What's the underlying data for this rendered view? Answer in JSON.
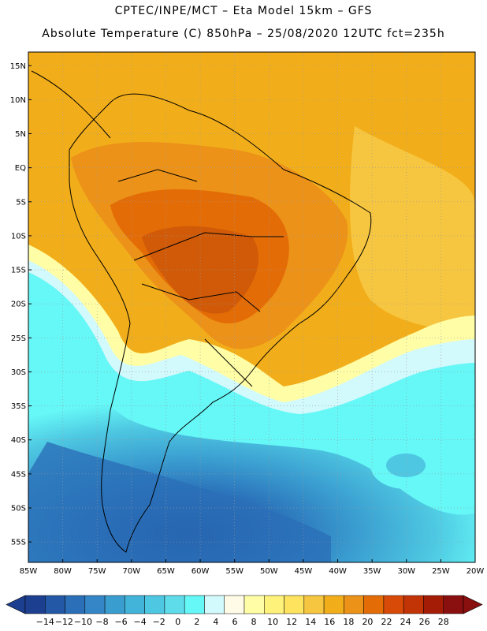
{
  "header": {
    "line1": "CPTEC/INPE/MCT –  Eta Model 15km – GFS",
    "line2": "Absolute Temperature (C) 850hPa – 25/08/2020 12UTC fct=235h"
  },
  "map": {
    "lat_labels": [
      "15N",
      "10N",
      "5N",
      "EQ",
      "5S",
      "10S",
      "15S",
      "20S",
      "25S",
      "30S",
      "35S",
      "40S",
      "45S",
      "50S",
      "55S"
    ],
    "lon_labels": [
      "85W",
      "80W",
      "75W",
      "70W",
      "65W",
      "60W",
      "55W",
      "50W",
      "45W",
      "40W",
      "35W",
      "30W",
      "25W",
      "20W"
    ],
    "lat_range": [
      17,
      -58
    ],
    "lon_range": [
      -85,
      -20
    ]
  },
  "colorbar": {
    "labels": [
      "-14",
      "-12",
      "-10",
      "-8",
      "-6",
      "-4",
      "-2",
      "0",
      "2",
      "4",
      "6",
      "8",
      "10",
      "12",
      "14",
      "16",
      "18",
      "20",
      "22",
      "24",
      "26",
      "28"
    ],
    "colors": [
      "#1c3f8f",
      "#2258a6",
      "#2a6fb8",
      "#3486c6",
      "#3a9dd0",
      "#42b4da",
      "#4ec8e2",
      "#5edcea",
      "#66f7f7",
      "#d2f9fb",
      "#fffbe6",
      "#fffea6",
      "#fff27a",
      "#fde35e",
      "#f7c640",
      "#f2ae1a",
      "#ec9218",
      "#e46c06",
      "#d84a08",
      "#c23406",
      "#a41c06",
      "#8a0f0f"
    ]
  }
}
